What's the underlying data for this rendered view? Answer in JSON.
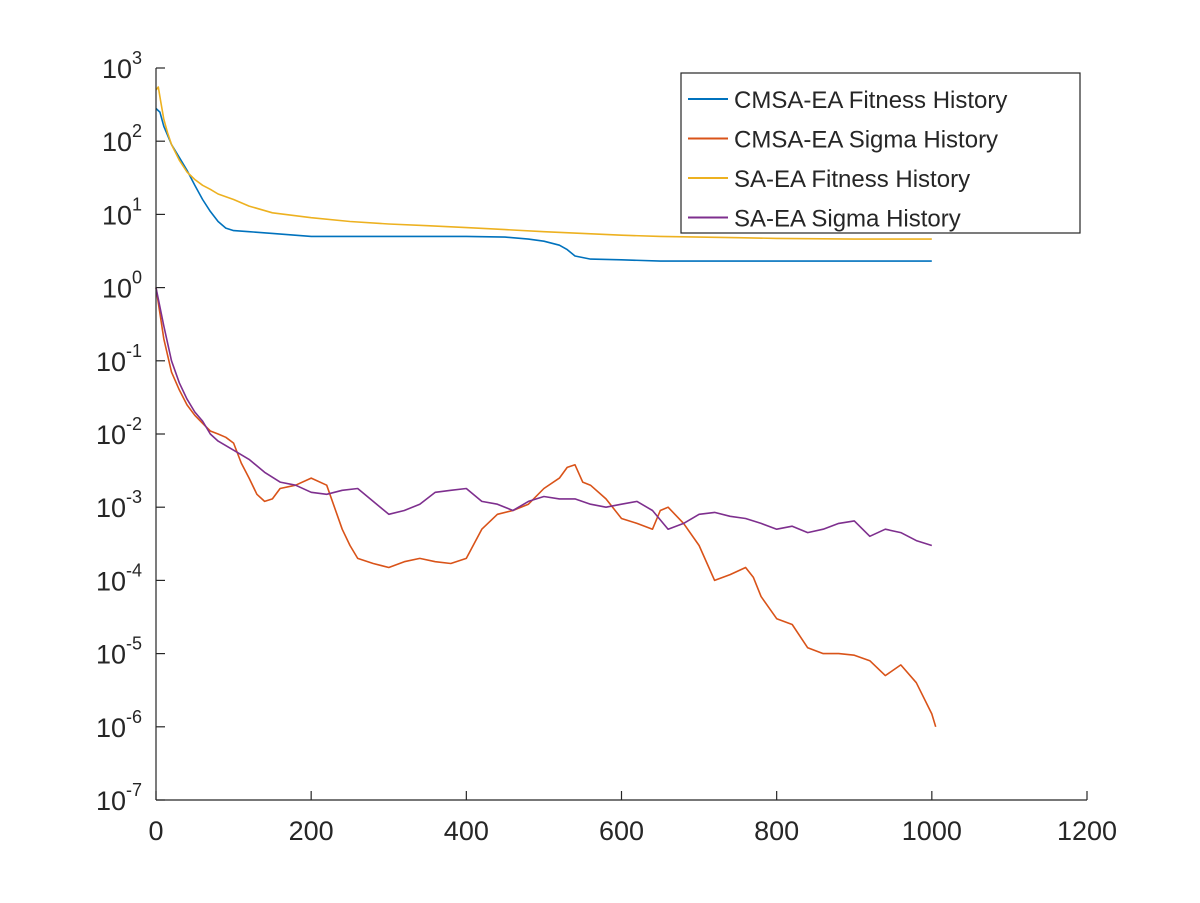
{
  "chart_data": {
    "type": "line",
    "title": "",
    "xlabel": "",
    "ylabel": "",
    "xlim": [
      0,
      1200
    ],
    "ylim": [
      1e-07,
      1000
    ],
    "yscale": "log",
    "grid": false,
    "legend_position": "top-right",
    "x_ticks": [
      0,
      200,
      400,
      600,
      800,
      1000,
      1200
    ],
    "x_tick_labels": [
      "0",
      "200",
      "400",
      "600",
      "800",
      "1000",
      "1200"
    ],
    "y_ticks": [
      1e-07,
      1e-06,
      1e-05,
      0.0001,
      0.001,
      0.01,
      0.1,
      1,
      10,
      100,
      1000
    ],
    "y_tick_labels": [
      {
        "base": "10",
        "exp": "-7"
      },
      {
        "base": "10",
        "exp": "-6"
      },
      {
        "base": "10",
        "exp": "-5"
      },
      {
        "base": "10",
        "exp": "-4"
      },
      {
        "base": "10",
        "exp": "-3"
      },
      {
        "base": "10",
        "exp": "-2"
      },
      {
        "base": "10",
        "exp": "-1"
      },
      {
        "base": "10",
        "exp": "0"
      },
      {
        "base": "10",
        "exp": "1"
      },
      {
        "base": "10",
        "exp": "2"
      },
      {
        "base": "10",
        "exp": "3"
      }
    ],
    "series": [
      {
        "name": "CMSA-EA Fitness History",
        "color": "#0072BD",
        "x": [
          0,
          5,
          10,
          20,
          30,
          40,
          50,
          60,
          70,
          80,
          90,
          100,
          120,
          150,
          200,
          250,
          300,
          350,
          400,
          450,
          480,
          500,
          520,
          530,
          540,
          560,
          600,
          650,
          700,
          800,
          900,
          1000
        ],
        "y": [
          280,
          250,
          160,
          90,
          60,
          40,
          25,
          16,
          11,
          8,
          6.5,
          6,
          5.8,
          5.5,
          5.0,
          5.0,
          5.0,
          5.0,
          5.0,
          4.9,
          4.6,
          4.3,
          3.8,
          3.3,
          2.7,
          2.45,
          2.4,
          2.3,
          2.3,
          2.3,
          2.3,
          2.3
        ]
      },
      {
        "name": "CMSA-EA Sigma History",
        "color": "#D95319",
        "x": [
          0,
          10,
          20,
          30,
          40,
          50,
          60,
          70,
          80,
          90,
          100,
          110,
          120,
          130,
          140,
          150,
          160,
          180,
          200,
          220,
          240,
          250,
          260,
          280,
          300,
          320,
          340,
          360,
          380,
          400,
          420,
          440,
          460,
          480,
          500,
          520,
          530,
          540,
          550,
          560,
          580,
          600,
          620,
          640,
          650,
          660,
          680,
          700,
          720,
          740,
          760,
          770,
          780,
          800,
          820,
          840,
          860,
          880,
          900,
          920,
          940,
          960,
          980,
          1000,
          1005
        ],
        "y": [
          1.0,
          0.2,
          0.07,
          0.04,
          0.025,
          0.018,
          0.014,
          0.011,
          0.01,
          0.009,
          0.0075,
          0.004,
          0.0025,
          0.0015,
          0.0012,
          0.0013,
          0.0018,
          0.002,
          0.0025,
          0.002,
          0.0005,
          0.0003,
          0.0002,
          0.00017,
          0.00015,
          0.00018,
          0.0002,
          0.00018,
          0.00017,
          0.0002,
          0.0005,
          0.0008,
          0.0009,
          0.0011,
          0.0018,
          0.0025,
          0.0035,
          0.0038,
          0.0022,
          0.002,
          0.0013,
          0.0007,
          0.0006,
          0.0005,
          0.0009,
          0.001,
          0.0006,
          0.0003,
          0.0001,
          0.00012,
          0.00015,
          0.00011,
          6e-05,
          3e-05,
          2.5e-05,
          1.2e-05,
          1e-05,
          1e-05,
          9.5e-06,
          8e-06,
          5e-06,
          7e-06,
          4e-06,
          1.5e-06,
          1e-06
        ]
      },
      {
        "name": "SA-EA Fitness History",
        "color": "#EDB120",
        "x": [
          0,
          3,
          6,
          10,
          15,
          20,
          30,
          40,
          50,
          60,
          70,
          80,
          100,
          120,
          150,
          200,
          250,
          300,
          350,
          400,
          450,
          500,
          550,
          600,
          650,
          700,
          750,
          800,
          900,
          1000
        ],
        "y": [
          500,
          550,
          350,
          200,
          130,
          90,
          55,
          38,
          30,
          25,
          22,
          19,
          16,
          13,
          10.5,
          9,
          8,
          7.4,
          7,
          6.6,
          6.2,
          5.8,
          5.5,
          5.2,
          5.0,
          4.9,
          4.8,
          4.7,
          4.6,
          4.6
        ]
      },
      {
        "name": "SA-EA Sigma History",
        "color": "#7E2F8E",
        "x": [
          0,
          10,
          20,
          30,
          40,
          50,
          60,
          70,
          80,
          100,
          120,
          140,
          160,
          180,
          200,
          220,
          240,
          260,
          280,
          300,
          320,
          340,
          360,
          380,
          400,
          420,
          440,
          460,
          480,
          500,
          520,
          540,
          560,
          580,
          600,
          620,
          640,
          660,
          680,
          700,
          720,
          740,
          760,
          780,
          800,
          820,
          840,
          860,
          880,
          900,
          920,
          940,
          960,
          980,
          1000
        ],
        "y": [
          1.0,
          0.3,
          0.1,
          0.05,
          0.03,
          0.02,
          0.015,
          0.01,
          0.008,
          0.006,
          0.0045,
          0.003,
          0.0022,
          0.002,
          0.0016,
          0.0015,
          0.0017,
          0.0018,
          0.0012,
          0.0008,
          0.0009,
          0.0011,
          0.0016,
          0.0017,
          0.0018,
          0.0012,
          0.0011,
          0.0009,
          0.0012,
          0.0014,
          0.0013,
          0.0013,
          0.0011,
          0.001,
          0.0011,
          0.0012,
          0.0009,
          0.0005,
          0.0006,
          0.0008,
          0.00085,
          0.00075,
          0.0007,
          0.0006,
          0.0005,
          0.00055,
          0.00045,
          0.0005,
          0.0006,
          0.00065,
          0.0004,
          0.0005,
          0.00045,
          0.00035,
          0.0003
        ]
      }
    ]
  }
}
